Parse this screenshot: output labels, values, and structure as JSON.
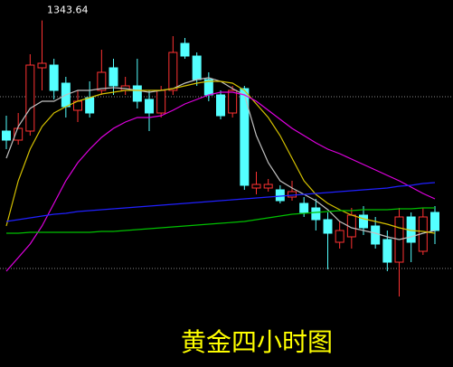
{
  "chart_data": {
    "type": "candlestick",
    "title": "黄金四小时图",
    "high_label": 1343.64,
    "ylim": [
      1305.3,
      1345.9
    ],
    "up_color": "#ff3232",
    "down_color": "#54ffff",
    "reference_lines": [
      1335.2,
      1316.2
    ],
    "reference_color": "#888888",
    "open": [
      1331.4,
      1330.4,
      1331.4,
      1338.4,
      1338.7,
      1336.7,
      1333.7,
      1335.1,
      1335.9,
      1338.4,
      1335.9,
      1336.4,
      1334.9,
      1333.4,
      1335.9,
      1341.1,
      1339.7,
      1337.1,
      1335.4,
      1333.4,
      1336.1,
      1325.1,
      1325.1,
      1324.9,
      1324.1,
      1323.4,
      1322.9,
      1321.6,
      1319.1,
      1319.7,
      1322.1,
      1320.9,
      1319.4,
      1316.9,
      1321.9,
      1318.1,
      1322.4
    ],
    "high": [
      1333.1,
      1333.4,
      1339.9,
      1343.64,
      1339.4,
      1337.4,
      1335.9,
      1336.9,
      1340.4,
      1339.4,
      1337.4,
      1339.4,
      1335.9,
      1336.4,
      1341.9,
      1341.7,
      1340.1,
      1337.9,
      1335.9,
      1336.4,
      1336.4,
      1326.9,
      1326.1,
      1325.4,
      1325.9,
      1324.1,
      1323.9,
      1322.4,
      1321.4,
      1322.9,
      1323.1,
      1321.9,
      1320.4,
      1322.9,
      1322.4,
      1322.9,
      1323.1
    ],
    "low": [
      1329.4,
      1329.9,
      1330.9,
      1335.9,
      1334.9,
      1332.9,
      1332.4,
      1332.9,
      1335.4,
      1335.4,
      1335.4,
      1333.9,
      1331.4,
      1332.9,
      1335.4,
      1339.4,
      1336.4,
      1334.7,
      1332.7,
      1332.9,
      1324.9,
      1324.4,
      1324.7,
      1323.4,
      1323.7,
      1321.9,
      1320.4,
      1316.1,
      1318.4,
      1318.4,
      1319.9,
      1318.4,
      1315.9,
      1313.1,
      1316.9,
      1317.7,
      1318.9
    ],
    "close": [
      1330.4,
      1331.7,
      1338.7,
      1338.9,
      1335.9,
      1334.1,
      1334.7,
      1333.4,
      1337.9,
      1336.4,
      1336.4,
      1334.7,
      1333.4,
      1335.9,
      1340.1,
      1339.7,
      1337.1,
      1335.4,
      1333.1,
      1335.9,
      1325.4,
      1325.5,
      1325.5,
      1323.7,
      1324.7,
      1322.4,
      1321.6,
      1320.1,
      1320.4,
      1322.1,
      1320.7,
      1318.9,
      1316.9,
      1321.9,
      1319.1,
      1321.9,
      1320.4
    ],
    "lines": [
      {
        "color": "#c0c0c0",
        "values": [
          1328.4,
          1331.9,
          1333.9,
          1334.7,
          1334.7,
          1335.4,
          1335.9,
          1335.9,
          1336.1,
          1336.2,
          1336.1,
          1335.9,
          1335.7,
          1335.9,
          1336.1,
          1336.7,
          1337.1,
          1337.3,
          1336.9,
          1336.1,
          1335.4,
          1330.9,
          1327.9,
          1325.9,
          1325.1,
          1324.4,
          1323.7,
          1322.7,
          1321.4,
          1320.7,
          1320.4,
          1320.1,
          1319.7,
          1319.4,
          1319.7,
          1320.1,
          1320.4
        ]
      },
      {
        "color": "#d4c000",
        "values": [
          1320.9,
          1325.9,
          1329.4,
          1331.9,
          1333.4,
          1334.1,
          1334.7,
          1335.1,
          1335.5,
          1335.7,
          1335.9,
          1335.9,
          1335.9,
          1335.9,
          1336.1,
          1336.4,
          1336.7,
          1336.9,
          1336.9,
          1336.7,
          1335.9,
          1334.4,
          1332.9,
          1330.9,
          1328.4,
          1325.9,
          1324.4,
          1323.4,
          1322.7,
          1322.1,
          1321.7,
          1321.4,
          1321.1,
          1320.7,
          1320.4,
          1320.3,
          1320.1
        ]
      },
      {
        "color": "#e000e0",
        "values": [
          1315.9,
          1317.4,
          1318.9,
          1320.9,
          1323.4,
          1325.9,
          1327.9,
          1329.4,
          1330.7,
          1331.7,
          1332.4,
          1332.9,
          1332.9,
          1333.1,
          1333.7,
          1334.4,
          1334.9,
          1335.4,
          1335.7,
          1335.7,
          1335.4,
          1334.7,
          1333.7,
          1332.7,
          1331.7,
          1330.9,
          1330.1,
          1329.4,
          1328.9,
          1328.3,
          1327.7,
          1327.1,
          1326.5,
          1325.9,
          1325.2,
          1324.5,
          1323.9
        ]
      },
      {
        "color": "#2020ff",
        "values": [
          1321.4,
          1321.6,
          1321.8,
          1322.0,
          1322.2,
          1322.3,
          1322.5,
          1322.6,
          1322.7,
          1322.8,
          1322.9,
          1323.0,
          1323.1,
          1323.2,
          1323.3,
          1323.4,
          1323.5,
          1323.6,
          1323.7,
          1323.8,
          1323.9,
          1324.0,
          1324.1,
          1324.2,
          1324.3,
          1324.4,
          1324.5,
          1324.6,
          1324.7,
          1324.8,
          1324.9,
          1325.0,
          1325.1,
          1325.3,
          1325.4,
          1325.6,
          1325.7
        ]
      },
      {
        "color": "#00c000",
        "values": [
          1320.1,
          1320.1,
          1320.2,
          1320.2,
          1320.2,
          1320.2,
          1320.2,
          1320.2,
          1320.3,
          1320.3,
          1320.4,
          1320.5,
          1320.6,
          1320.7,
          1320.8,
          1320.9,
          1321.0,
          1321.1,
          1321.2,
          1321.3,
          1321.4,
          1321.6,
          1321.8,
          1322.0,
          1322.2,
          1322.3,
          1322.4,
          1322.5,
          1322.6,
          1322.6,
          1322.7,
          1322.7,
          1322.7,
          1322.8,
          1322.8,
          1322.9,
          1322.9
        ]
      }
    ]
  }
}
